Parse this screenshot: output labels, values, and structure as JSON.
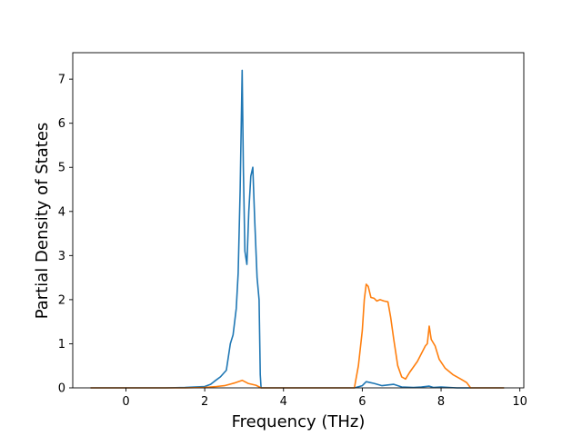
{
  "chart_data": {
    "type": "line",
    "title": "",
    "xlabel": "Frequency (THz)",
    "ylabel": "Partial Density of States",
    "xlim": [
      -1.35,
      10.1
    ],
    "ylim": [
      0,
      7.6
    ],
    "x_ticks": [
      0,
      2,
      4,
      6,
      8,
      10
    ],
    "y_ticks": [
      0,
      1,
      2,
      3,
      4,
      5,
      6,
      7
    ],
    "grid": false,
    "legend": "none",
    "series": [
      {
        "color": "#1f77b4",
        "points": [
          [
            -0.9,
            0.0
          ],
          [
            1.0,
            0.0
          ],
          [
            1.5,
            0.01
          ],
          [
            2.0,
            0.03
          ],
          [
            2.15,
            0.08
          ],
          [
            2.25,
            0.15
          ],
          [
            2.4,
            0.25
          ],
          [
            2.55,
            0.4
          ],
          [
            2.65,
            1.0
          ],
          [
            2.72,
            1.2
          ],
          [
            2.8,
            1.8
          ],
          [
            2.85,
            2.6
          ],
          [
            2.9,
            4.5
          ],
          [
            2.95,
            7.2
          ],
          [
            2.98,
            5.0
          ],
          [
            3.02,
            3.1
          ],
          [
            3.07,
            2.8
          ],
          [
            3.12,
            4.0
          ],
          [
            3.17,
            4.8
          ],
          [
            3.22,
            5.0
          ],
          [
            3.27,
            3.8
          ],
          [
            3.33,
            2.5
          ],
          [
            3.38,
            2.0
          ],
          [
            3.41,
            0.3
          ],
          [
            3.43,
            0.0
          ],
          [
            5.8,
            0.0
          ],
          [
            6.0,
            0.05
          ],
          [
            6.1,
            0.14
          ],
          [
            6.2,
            0.12
          ],
          [
            6.3,
            0.1
          ],
          [
            6.5,
            0.05
          ],
          [
            6.8,
            0.08
          ],
          [
            7.0,
            0.02
          ],
          [
            7.3,
            0.01
          ],
          [
            7.5,
            0.02
          ],
          [
            7.7,
            0.04
          ],
          [
            7.8,
            0.01
          ],
          [
            8.0,
            0.02
          ],
          [
            8.4,
            0.0
          ],
          [
            9.6,
            0.0
          ]
        ]
      },
      {
        "color": "#ff7f0e",
        "points": [
          [
            -0.9,
            0.0
          ],
          [
            1.5,
            0.0
          ],
          [
            2.0,
            0.01
          ],
          [
            2.3,
            0.03
          ],
          [
            2.5,
            0.05
          ],
          [
            2.75,
            0.11
          ],
          [
            2.95,
            0.17
          ],
          [
            3.1,
            0.1
          ],
          [
            3.3,
            0.06
          ],
          [
            3.43,
            0.0
          ],
          [
            5.8,
            0.0
          ],
          [
            5.9,
            0.5
          ],
          [
            6.0,
            1.3
          ],
          [
            6.05,
            2.0
          ],
          [
            6.1,
            2.35
          ],
          [
            6.15,
            2.3
          ],
          [
            6.22,
            2.05
          ],
          [
            6.3,
            2.03
          ],
          [
            6.37,
            1.97
          ],
          [
            6.45,
            2.0
          ],
          [
            6.55,
            1.97
          ],
          [
            6.65,
            1.95
          ],
          [
            6.72,
            1.6
          ],
          [
            6.8,
            1.1
          ],
          [
            6.9,
            0.5
          ],
          [
            7.0,
            0.25
          ],
          [
            7.1,
            0.2
          ],
          [
            7.2,
            0.35
          ],
          [
            7.4,
            0.6
          ],
          [
            7.6,
            0.95
          ],
          [
            7.65,
            1.0
          ],
          [
            7.7,
            1.4
          ],
          [
            7.75,
            1.1
          ],
          [
            7.85,
            0.95
          ],
          [
            7.95,
            0.65
          ],
          [
            8.1,
            0.45
          ],
          [
            8.3,
            0.3
          ],
          [
            8.5,
            0.2
          ],
          [
            8.65,
            0.12
          ],
          [
            8.75,
            0.0
          ],
          [
            9.6,
            0.0
          ]
        ]
      }
    ]
  }
}
